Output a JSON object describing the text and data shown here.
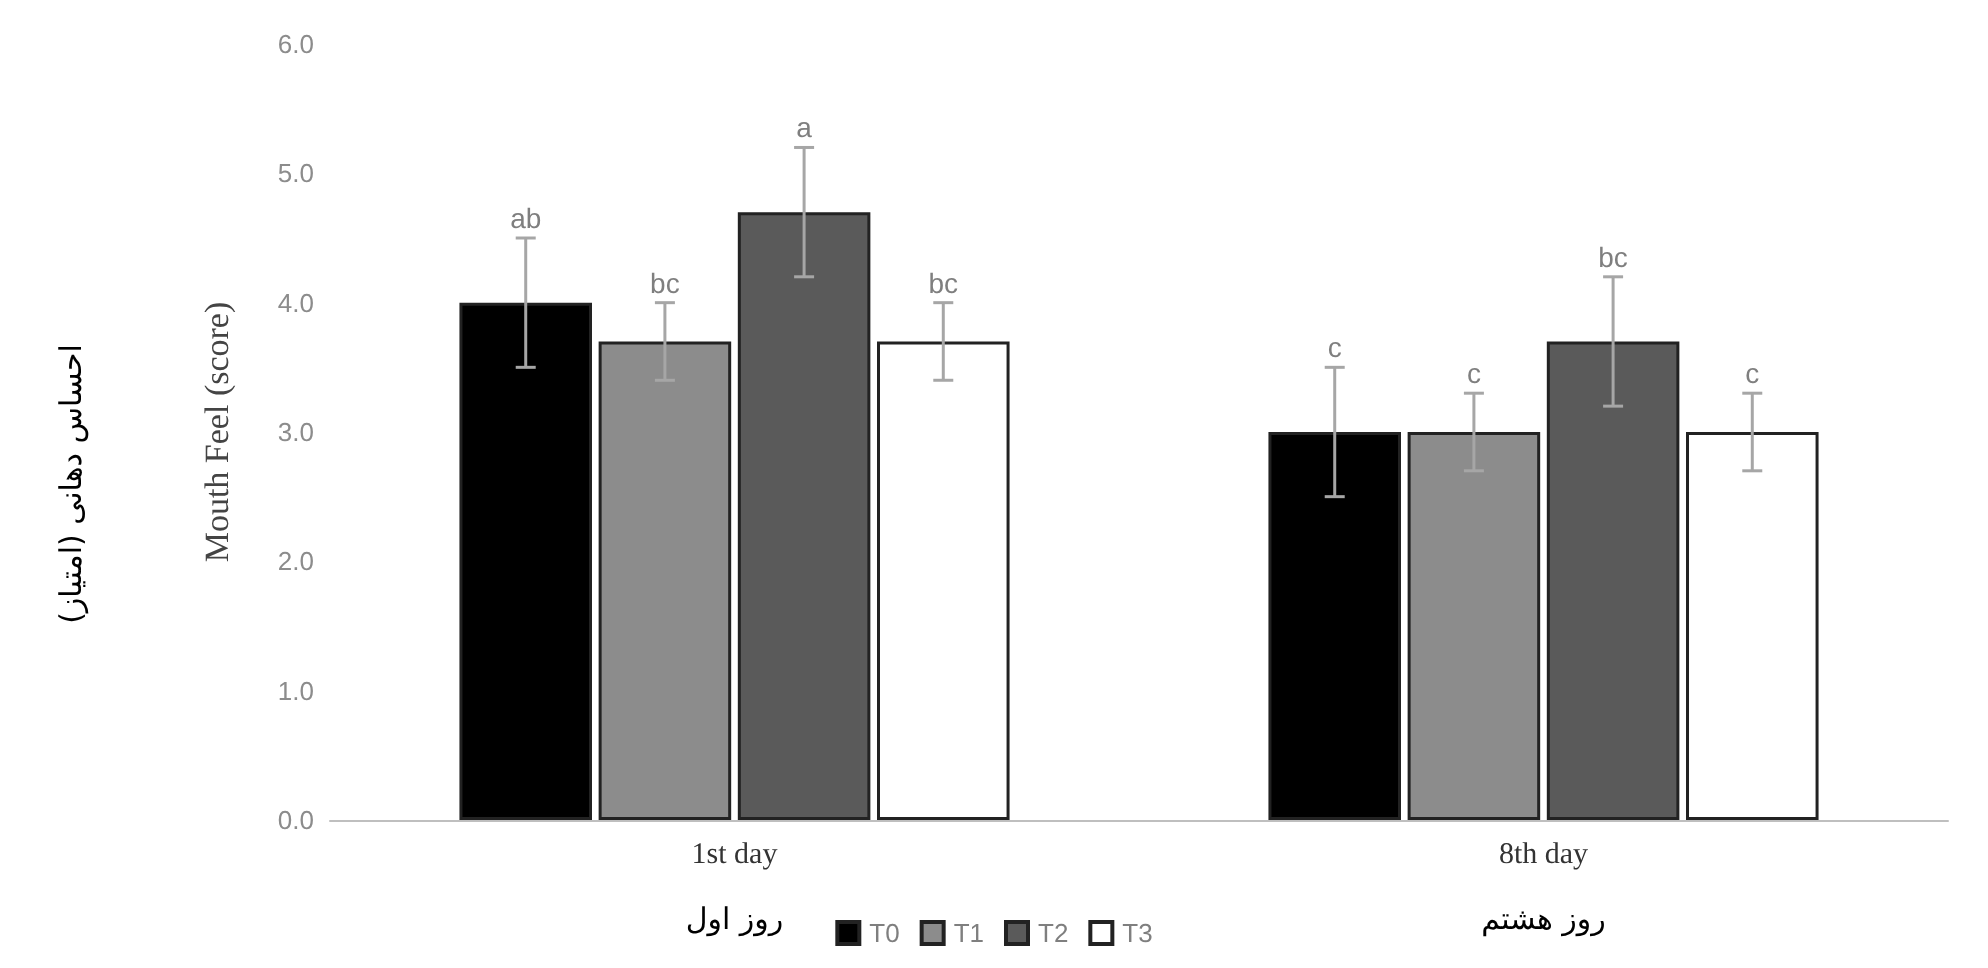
{
  "chart_data": {
    "type": "bar",
    "ylabel": "Mouth Feel (score)",
    "categories": [
      "1st day",
      "8th day"
    ],
    "series": [
      {
        "name": "T0",
        "color": "#000000",
        "values": [
          4.0,
          3.0
        ],
        "errors": [
          0.5,
          0.5
        ],
        "value_labels": [
          "ab",
          "c"
        ]
      },
      {
        "name": "T1",
        "color": "#8c8c8c",
        "values": [
          3.7,
          3.0
        ],
        "errors": [
          0.3,
          0.3
        ],
        "value_labels": [
          "bc",
          "c"
        ]
      },
      {
        "name": "T2",
        "color": "#5a5a5a",
        "values": [
          4.7,
          3.7
        ],
        "errors": [
          0.5,
          0.5
        ],
        "value_labels": [
          "a",
          "bc"
        ]
      },
      {
        "name": "T3",
        "color": "#ffffff",
        "values": [
          3.7,
          3.0
        ],
        "errors": [
          0.3,
          0.3
        ],
        "value_labels": [
          "bc",
          "c"
        ]
      }
    ],
    "ylim": [
      0,
      6
    ],
    "yticks": [
      {
        "value": 0,
        "label": "0.0"
      },
      {
        "value": 1,
        "label": "1.0"
      },
      {
        "value": 2,
        "label": "2.0"
      },
      {
        "value": 3,
        "label": "3.0"
      },
      {
        "value": 4,
        "label": "4.0"
      },
      {
        "value": 5,
        "label": "5.0"
      },
      {
        "value": 6,
        "label": "6.0"
      }
    ],
    "legend": "bottom",
    "annotations": [
      "روز اول",
      "روز هشتم",
      "احساس دهانی (امتیاز)"
    ]
  }
}
